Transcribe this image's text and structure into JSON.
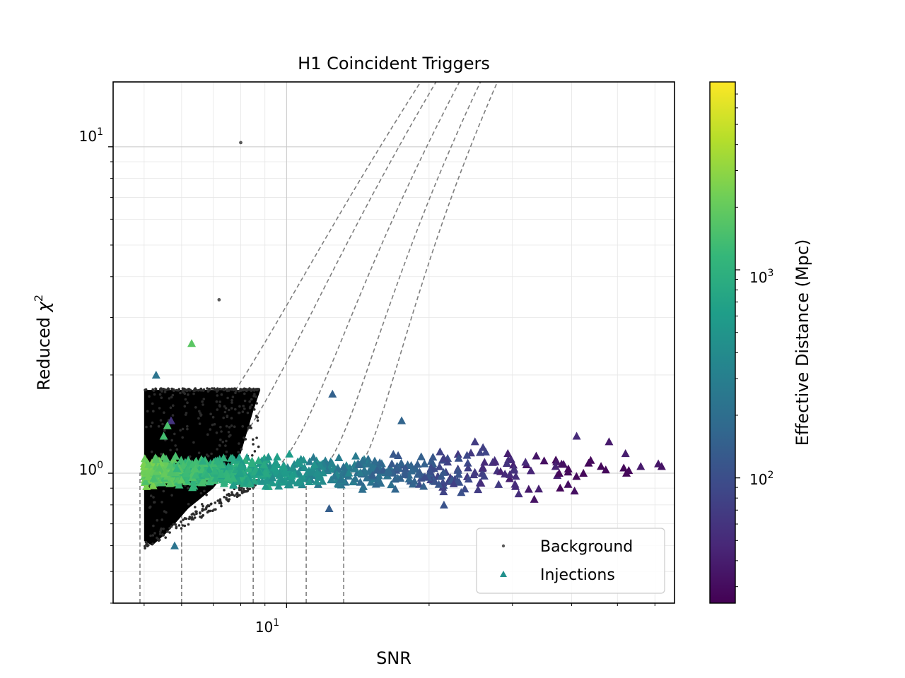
{
  "chart_data": {
    "type": "scatter",
    "title": "H1 Coincident Triggers",
    "xlabel": "SNR",
    "ylabel_main": "Reduced ",
    "ylabel_symbol": "χ",
    "ylabel_sup": "2",
    "x_scale": "log",
    "y_scale": "log",
    "xlim": [
      4.3,
      66
    ],
    "ylim": [
      0.4,
      15.8
    ],
    "grid": true,
    "x_ticks": [
      {
        "base": "10",
        "exp": "1",
        "value": 10
      }
    ],
    "y_ticks": [
      {
        "base": "10",
        "exp": "0",
        "value": 1
      },
      {
        "base": "10",
        "exp": "1",
        "value": 10
      }
    ],
    "legend": {
      "position": "lower-right",
      "entries": [
        {
          "label": "Background",
          "marker": "dot",
          "color": "#595959"
        },
        {
          "label": "Injections",
          "marker": "triangle",
          "color": "#21908c"
        }
      ]
    },
    "colorbar": {
      "label": "Effective Distance (Mpc)",
      "scale": "log",
      "range": [
        25,
        8000
      ],
      "ticks": [
        {
          "base": "10",
          "exp": "2",
          "value": 100
        },
        {
          "base": "10",
          "exp": "3",
          "value": 1000
        }
      ],
      "colormap": [
        "#440154",
        "#482878",
        "#3e4989",
        "#31688e",
        "#26828e",
        "#1f9e89",
        "#35b779",
        "#6ece58",
        "#b5de2b",
        "#fde725"
      ]
    },
    "threshold_curves": [
      {
        "snr_floor": 4.9,
        "snr_knee": 5.0
      },
      {
        "snr_floor": 6.0,
        "snr_knee": 6.5
      },
      {
        "snr_floor": 8.5,
        "snr_knee": 9.0
      },
      {
        "snr_floor": 11.0,
        "snr_knee": 11.5
      },
      {
        "snr_floor": 13.2,
        "snr_knee": 13.7
      }
    ],
    "background_region": {
      "snr_min": 5.0,
      "snr_max": 8.8,
      "chisq_max": 1.8,
      "chisq_min_at_low_snr": 0.6,
      "chisq_min_at_high_snr": 0.96
    },
    "background_outliers": [
      {
        "x": 7.2,
        "y": 3.4
      },
      {
        "x": 8.0,
        "y": 10.3
      }
    ],
    "injection_highlights": [
      {
        "x": 5.3,
        "y": 2.0,
        "d": 230
      },
      {
        "x": 6.3,
        "y": 2.5,
        "d": 1800
      },
      {
        "x": 12.5,
        "y": 1.75,
        "d": 150
      },
      {
        "x": 17.5,
        "y": 1.45,
        "d": 160
      },
      {
        "x": 21.5,
        "y": 0.8,
        "d": 110
      },
      {
        "x": 5.8,
        "y": 0.6,
        "d": 230
      },
      {
        "x": 12.3,
        "y": 0.78,
        "d": 140
      },
      {
        "x": 5.7,
        "y": 1.45,
        "d": 60
      },
      {
        "x": 5.6,
        "y": 1.4,
        "d": 1500
      },
      {
        "x": 5.5,
        "y": 1.3,
        "d": 1400
      },
      {
        "x": 5.3,
        "y": 1.1,
        "d": 1700
      },
      {
        "x": 48,
        "y": 1.25,
        "d": 38
      },
      {
        "x": 52,
        "y": 1.15,
        "d": 40
      },
      {
        "x": 62,
        "y": 1.05,
        "d": 33
      },
      {
        "x": 61,
        "y": 1.07,
        "d": 35
      },
      {
        "x": 56,
        "y": 1.05,
        "d": 38
      },
      {
        "x": 41,
        "y": 1.3,
        "d": 50
      },
      {
        "x": 37,
        "y": 1.05,
        "d": 45
      },
      {
        "x": 25,
        "y": 1.25,
        "d": 70
      },
      {
        "x": 26,
        "y": 1.2,
        "d": 75
      }
    ]
  }
}
